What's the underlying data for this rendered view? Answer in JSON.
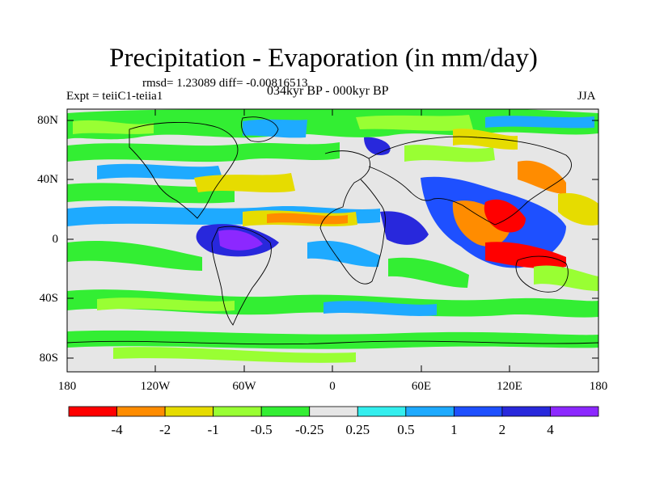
{
  "title": "Precipitation - Evaporation (in mm/day)",
  "stats": "rmsd= 1.23089 diff= -0.00816513",
  "experiment": "Expt = teiiC1-teiia1",
  "period": "034kyr BP - 000kyr BP",
  "season": "JJA",
  "lat_ticks": [
    "80N",
    "40N",
    "0",
    "40S",
    "80S"
  ],
  "lon_ticks": [
    "180",
    "120W",
    "60W",
    "0",
    "60E",
    "120E",
    "180"
  ],
  "colorbar": {
    "labels": [
      "-4",
      "-2",
      "-1",
      "-0.5",
      "-0.25",
      "0.25",
      "0.5",
      "1",
      "2",
      "4"
    ],
    "colors": [
      "#ff0000",
      "#ff8c00",
      "#e6dc00",
      "#99ff33",
      "#33ee33",
      "#e6e6e6",
      "#33eeee",
      "#1eaaff",
      "#1e50ff",
      "#2828dc",
      "#8c28ff"
    ]
  },
  "colors": {
    "background": "#e6e6e6",
    "coastline": "#000000"
  }
}
